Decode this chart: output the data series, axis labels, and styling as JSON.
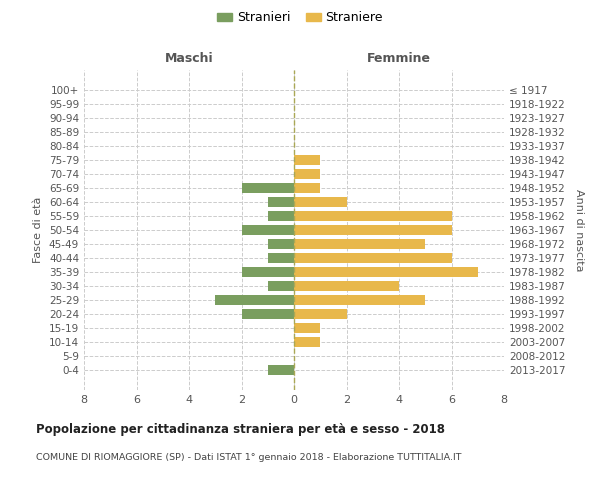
{
  "age_groups": [
    "100+",
    "95-99",
    "90-94",
    "85-89",
    "80-84",
    "75-79",
    "70-74",
    "65-69",
    "60-64",
    "55-59",
    "50-54",
    "45-49",
    "40-44",
    "35-39",
    "30-34",
    "25-29",
    "20-24",
    "15-19",
    "10-14",
    "5-9",
    "0-4"
  ],
  "birth_years": [
    "≤ 1917",
    "1918-1922",
    "1923-1927",
    "1928-1932",
    "1933-1937",
    "1938-1942",
    "1943-1947",
    "1948-1952",
    "1953-1957",
    "1958-1962",
    "1963-1967",
    "1968-1972",
    "1973-1977",
    "1978-1982",
    "1983-1987",
    "1988-1992",
    "1993-1997",
    "1998-2002",
    "2003-2007",
    "2008-2012",
    "2013-2017"
  ],
  "males": [
    0,
    0,
    0,
    0,
    0,
    0,
    0,
    2,
    1,
    1,
    2,
    1,
    1,
    2,
    1,
    3,
    2,
    0,
    0,
    0,
    1
  ],
  "females": [
    0,
    0,
    0,
    0,
    0,
    1,
    1,
    1,
    2,
    6,
    6,
    5,
    6,
    7,
    4,
    5,
    2,
    1,
    1,
    0,
    0
  ],
  "male_color": "#7a9e5f",
  "female_color": "#e8b84b",
  "male_label": "Stranieri",
  "female_label": "Straniere",
  "title": "Popolazione per cittadinanza straniera per età e sesso - 2018",
  "subtitle": "COMUNE DI RIOMAGGIORE (SP) - Dati ISTAT 1° gennaio 2018 - Elaborazione TUTTITALIA.IT",
  "xlabel_left": "Maschi",
  "xlabel_right": "Femmine",
  "ylabel_left": "Fasce di età",
  "ylabel_right": "Anni di nascita",
  "xlim": 8,
  "grid_color": "#cccccc",
  "background_color": "#ffffff",
  "bar_height": 0.75
}
